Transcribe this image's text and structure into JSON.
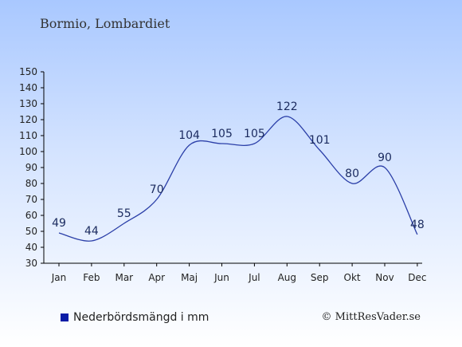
{
  "title": "Bormio, Lombardiet",
  "legend_label": "Nederbördsmängd i mm",
  "copyright": "© MittResVader.se",
  "colors": {
    "line": "#2b3fa8",
    "swatch": "#0b1ca6"
  },
  "chart_data": {
    "type": "line",
    "categories": [
      "Jan",
      "Feb",
      "Mar",
      "Apr",
      "Maj",
      "Jun",
      "Jul",
      "Aug",
      "Sep",
      "Okt",
      "Nov",
      "Dec"
    ],
    "values": [
      49,
      44,
      55,
      70,
      104,
      105,
      105,
      122,
      101,
      80,
      90,
      48
    ],
    "ylim": [
      30,
      150
    ],
    "yticks": [
      30,
      40,
      50,
      60,
      70,
      80,
      90,
      100,
      110,
      120,
      130,
      140,
      150
    ],
    "grid": false,
    "legend_position": "bottom-left"
  }
}
